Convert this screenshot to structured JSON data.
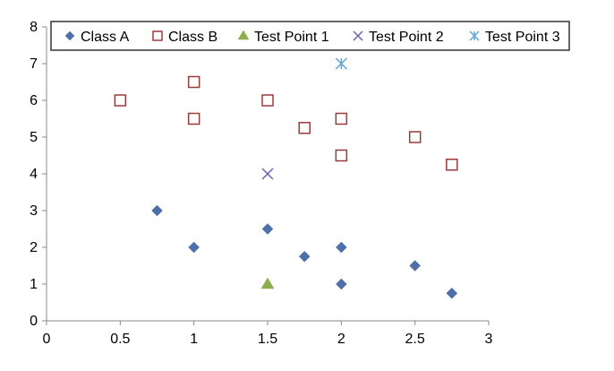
{
  "chart_data": {
    "type": "scatter",
    "title": "",
    "xlabel": "",
    "ylabel": "",
    "xlim": [
      0,
      3
    ],
    "ylim": [
      0,
      8
    ],
    "x_ticks": [
      0,
      0.5,
      1,
      1.5,
      2,
      2.5,
      3
    ],
    "x_tick_labels": [
      "0",
      "0.5",
      "1",
      "1.5",
      "2",
      "2.5",
      "3"
    ],
    "y_ticks": [
      0,
      1,
      2,
      3,
      4,
      5,
      6,
      7,
      8
    ],
    "y_tick_labels": [
      "0",
      "1",
      "2",
      "3",
      "4",
      "5",
      "6",
      "7",
      "8"
    ],
    "grid": false,
    "legend_position": "top",
    "series": [
      {
        "name": "Class A",
        "marker": "diamond",
        "color": "#4f6fa8",
        "points": [
          {
            "x": 0.75,
            "y": 3
          },
          {
            "x": 1,
            "y": 2
          },
          {
            "x": 1.5,
            "y": 2.5
          },
          {
            "x": 1.75,
            "y": 1.75
          },
          {
            "x": 2,
            "y": 2
          },
          {
            "x": 2,
            "y": 1
          },
          {
            "x": 2.5,
            "y": 1.5
          },
          {
            "x": 2.75,
            "y": 0.75
          }
        ]
      },
      {
        "name": "Class B",
        "marker": "open-square",
        "color": "#9b3a3a",
        "points": [
          {
            "x": 0.5,
            "y": 6
          },
          {
            "x": 1,
            "y": 6.5
          },
          {
            "x": 1,
            "y": 5.5
          },
          {
            "x": 1.5,
            "y": 6
          },
          {
            "x": 1.75,
            "y": 5.25
          },
          {
            "x": 2,
            "y": 5.5
          },
          {
            "x": 2,
            "y": 4.5
          },
          {
            "x": 2.5,
            "y": 5
          },
          {
            "x": 2.75,
            "y": 4.25
          }
        ]
      },
      {
        "name": "Test Point 1",
        "marker": "triangle",
        "color": "#8cae4e",
        "points": [
          {
            "x": 1.5,
            "y": 1
          }
        ]
      },
      {
        "name": "Test Point 2",
        "marker": "x",
        "color": "#6f5fb0",
        "points": [
          {
            "x": 1.5,
            "y": 4
          }
        ]
      },
      {
        "name": "Test Point 3",
        "marker": "asterisk",
        "color": "#5aa7d6",
        "points": [
          {
            "x": 2,
            "y": 7
          }
        ]
      }
    ]
  }
}
